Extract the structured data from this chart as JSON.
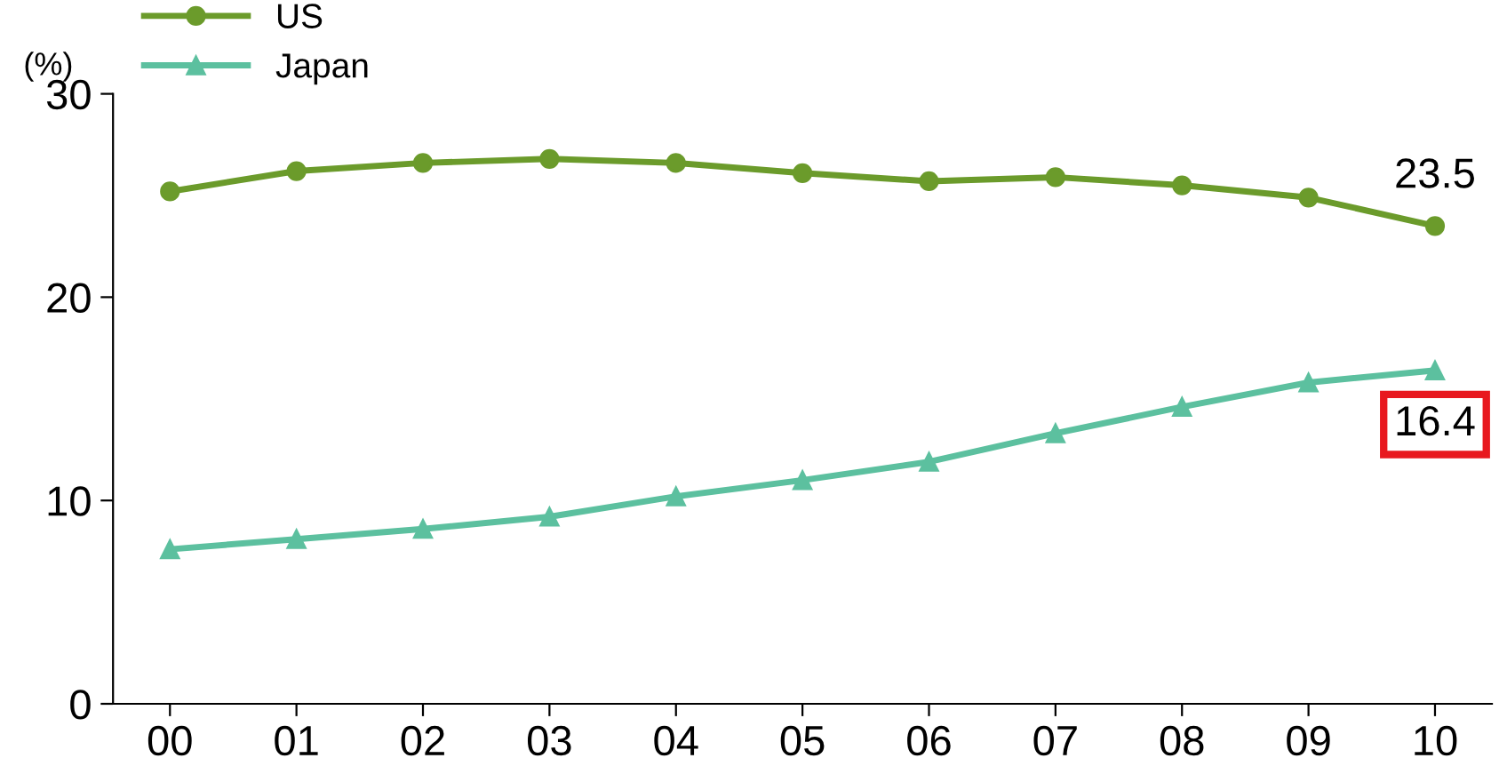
{
  "chart_data": {
    "type": "line",
    "ylabel": "(%)",
    "categories": [
      "00",
      "01",
      "02",
      "03",
      "04",
      "05",
      "06",
      "07",
      "08",
      "09",
      "10"
    ],
    "series": [
      {
        "name": "US",
        "color": "#6b9b2b",
        "marker": "circle",
        "values": [
          25.2,
          26.2,
          26.6,
          26.8,
          26.6,
          26.1,
          25.7,
          25.9,
          25.5,
          24.9,
          23.5
        ]
      },
      {
        "name": "Japan",
        "color": "#5cc09f",
        "marker": "triangle",
        "values": [
          7.6,
          8.1,
          8.6,
          9.2,
          10.2,
          11.0,
          11.9,
          13.3,
          14.6,
          15.8,
          16.4
        ]
      }
    ],
    "ylim": [
      0,
      30
    ],
    "yticks": [
      0,
      10,
      20,
      30
    ],
    "grid": false,
    "legend": "top left",
    "line_style": "solid",
    "annotations": [
      {
        "text": "23.5",
        "x": "10",
        "y": 23.5
      },
      {
        "text": "16.4",
        "x": "10",
        "y": 16.4
      }
    ]
  }
}
